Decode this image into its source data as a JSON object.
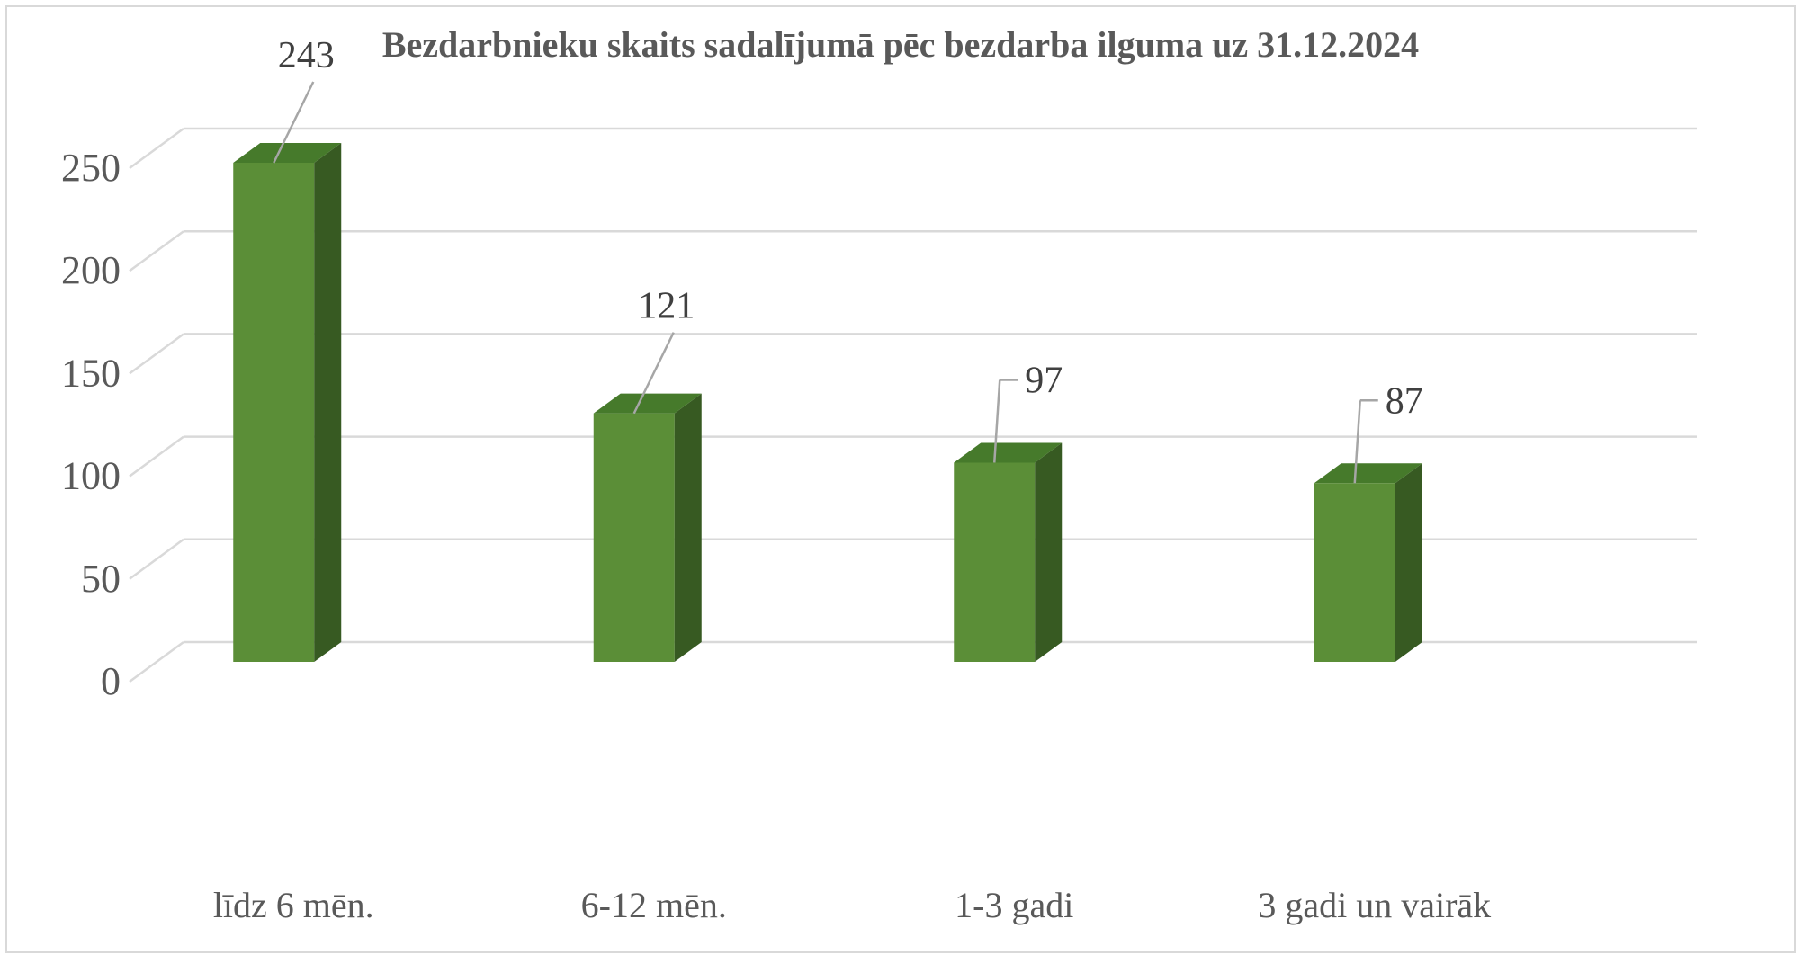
{
  "chart_data": {
    "type": "bar",
    "style": "3d-column",
    "title": "Bezdarbnieku skaits sadalījumā pēc bezdarba ilguma uz 31.12.2024",
    "categories": [
      "līdz 6 mēn.",
      "6-12 mēn.",
      "1-3 gadi",
      "3 gadi un vairāk"
    ],
    "values": [
      243,
      121,
      97,
      87
    ],
    "data_labels": [
      "243",
      "121",
      "97",
      "87"
    ],
    "ylim": [
      0,
      250
    ],
    "yticks": [
      0,
      50,
      100,
      150,
      200,
      250
    ],
    "grid": true,
    "legend": "none",
    "colors": {
      "bar_front": "#5b8e37",
      "bar_side": "#375a22",
      "bar_top": "#467a2b",
      "gridline": "#d9d9d9",
      "leader_line": "#a6a6a6"
    }
  }
}
